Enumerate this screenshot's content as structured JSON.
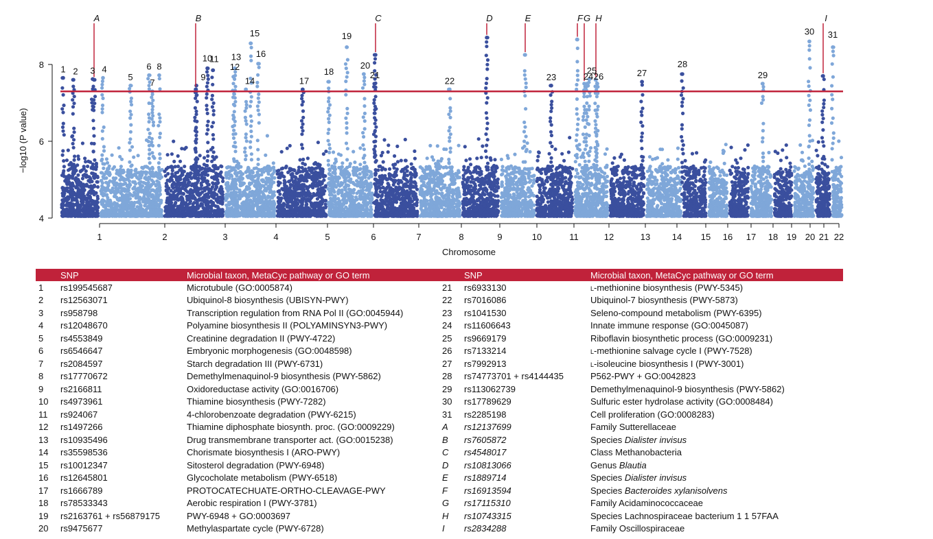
{
  "chart_data": {
    "type": "scatter",
    "xlabel": "Chromosome",
    "ylabel": "−log10 (P value)",
    "ylim": [
      4,
      8.9
    ],
    "yticks": [
      4,
      6,
      8
    ],
    "threshold": 7.3,
    "chromosomes": [
      "1",
      "2",
      "3",
      "4",
      "5",
      "6",
      "7",
      "8",
      "9",
      "10",
      "11",
      "12",
      "13",
      "14",
      "15",
      "16",
      "17",
      "18",
      "19",
      "20",
      "21",
      "22"
    ],
    "peaks": [
      {
        "label": "1",
        "kind": "number",
        "y": 7.65
      },
      {
        "label": "2",
        "kind": "number",
        "y": 7.6
      },
      {
        "label": "3",
        "kind": "number",
        "y": 7.62
      },
      {
        "label": "4",
        "kind": "number",
        "y": 7.65
      },
      {
        "label": "5",
        "kind": "number",
        "y": 7.45
      },
      {
        "label": "6",
        "kind": "number",
        "y": 7.72
      },
      {
        "label": "7",
        "kind": "number",
        "y": 7.3
      },
      {
        "label": "8",
        "kind": "number",
        "y": 7.72
      },
      {
        "label": "9",
        "kind": "number",
        "y": 7.45
      },
      {
        "label": "10",
        "kind": "number",
        "y": 7.9
      },
      {
        "label": "11",
        "kind": "number",
        "y": 7.85
      },
      {
        "label": "12",
        "kind": "number",
        "y": 7.68
      },
      {
        "label": "13",
        "kind": "number",
        "y": 7.9
      },
      {
        "label": "14",
        "kind": "number",
        "y": 7.35
      },
      {
        "label": "15",
        "kind": "number",
        "y": 8.55
      },
      {
        "label": "16",
        "kind": "number",
        "y": 8.02
      },
      {
        "label": "17",
        "kind": "number",
        "y": 7.35
      },
      {
        "label": "18",
        "kind": "number",
        "y": 7.55
      },
      {
        "label": "19",
        "kind": "number",
        "y": 8.45
      },
      {
        "label": "20",
        "kind": "number",
        "y": 7.75
      },
      {
        "label": "21",
        "kind": "number",
        "y": 7.5
      },
      {
        "label": "22",
        "kind": "number",
        "y": 7.35
      },
      {
        "label": "23",
        "kind": "number",
        "y": 7.45
      },
      {
        "label": "24",
        "kind": "number",
        "y": 7.5
      },
      {
        "label": "25",
        "kind": "number",
        "y": 7.62
      },
      {
        "label": "26",
        "kind": "number",
        "y": 7.5
      },
      {
        "label": "27",
        "kind": "number",
        "y": 7.55
      },
      {
        "label": "28",
        "kind": "number",
        "y": 7.75
      },
      {
        "label": "29",
        "kind": "number",
        "y": 7.5
      },
      {
        "label": "30",
        "kind": "number",
        "y": 8.6
      },
      {
        "label": "31",
        "kind": "number",
        "y": 8.45
      },
      {
        "label": "A",
        "kind": "letter",
        "y": 7.6
      },
      {
        "label": "B",
        "kind": "letter",
        "y": 7.35
      },
      {
        "label": "C",
        "kind": "letter",
        "y": 8.25
      },
      {
        "label": "D",
        "kind": "letter",
        "y": 8.7
      },
      {
        "label": "E",
        "kind": "letter",
        "y": 8.25
      },
      {
        "label": "F",
        "kind": "letter",
        "y": 8.65
      },
      {
        "label": "G",
        "kind": "letter",
        "y": 7.5
      },
      {
        "label": "H",
        "kind": "letter",
        "y": 7.6
      },
      {
        "label": "I",
        "kind": "letter",
        "y": 7.7
      }
    ]
  },
  "table": {
    "headers": {
      "snp": "SNP",
      "term": "Microbial taxon, MetaCyc pathway or GO term"
    },
    "rows": [
      {
        "idx": "1",
        "snp": "rs199545687",
        "term": "Microtubule (GO:0005874)"
      },
      {
        "idx": "2",
        "snp": "rs12563071",
        "term": "Ubiquinol-8 biosynthesis (UBISYN-PWY)"
      },
      {
        "idx": "3",
        "snp": "rs958798",
        "term": "Transcription regulation from RNA Pol II (GO:0045944)"
      },
      {
        "idx": "4",
        "snp": "rs12048670",
        "term": "Polyamine biosynthesis II (POLYAMINSYN3-PWY)"
      },
      {
        "idx": "5",
        "snp": "rs4553849",
        "term": "Creatinine degradation II (PWY-4722)"
      },
      {
        "idx": "6",
        "snp": "rs6546647",
        "term": "Embryonic morphogenesis (GO:0048598)"
      },
      {
        "idx": "7",
        "snp": "rs2084597",
        "term": "Starch degradation III (PWY-6731)"
      },
      {
        "idx": "8",
        "snp": "rs17770672",
        "term": "Demethylmenaquinol-9 biosynthesis (PWY-5862)"
      },
      {
        "idx": "9",
        "snp": "rs2166811",
        "term": "Oxidoreductase activity (GO:0016706)"
      },
      {
        "idx": "10",
        "snp": "rs4973961",
        "term": "Thiamine biosynthesis (PWY-7282)"
      },
      {
        "idx": "11",
        "snp": "rs924067",
        "term": "4-chlorobenzoate degradation (PWY-6215)"
      },
      {
        "idx": "12",
        "snp": "rs1497266",
        "term": "Thiamine diphosphate biosynth. proc. (GO:0009229)"
      },
      {
        "idx": "13",
        "snp": "rs10935496",
        "term": "Drug transmembrane transporter act. (GO:0015238)"
      },
      {
        "idx": "14",
        "snp": "rs35598536",
        "term": "Chorismate biosynthesis I (ARO-PWY)"
      },
      {
        "idx": "15",
        "snp": "rs10012347",
        "term": "Sitosterol degradation (PWY-6948)"
      },
      {
        "idx": "16",
        "snp": "rs12645801",
        "term": "Glycocholate metabolism (PWY-6518)"
      },
      {
        "idx": "17",
        "snp": "rs1666789",
        "term": "PROTOCATECHUATE-ORTHO-CLEAVAGE-PWY"
      },
      {
        "idx": "18",
        "snp": "rs78533343",
        "term": "Aerobic respiration I (PWY-3781)"
      },
      {
        "idx": "19",
        "snp": "rs2163761 + rs56879175",
        "term": "PWY-6948 + GO:0003697"
      },
      {
        "idx": "20",
        "snp": "rs9475677",
        "term": "Methylaspartate cycle (PWY-6728)"
      },
      {
        "idx": "21",
        "snp": "rs6933130",
        "term": "L-methionine biosynthesis (PWY-5345)"
      },
      {
        "idx": "22",
        "snp": "rs7016086",
        "term": "Ubiquinol-7 biosynthesis (PWY-5873)"
      },
      {
        "idx": "23",
        "snp": "rs1041530",
        "term": "Seleno-compound metabolism (PWY-6395)"
      },
      {
        "idx": "24",
        "snp": "rs11606643",
        "term": "Innate immune response (GO:0045087)"
      },
      {
        "idx": "25",
        "snp": "rs9669179",
        "term": "Riboflavin biosynthetic process (GO:0009231)"
      },
      {
        "idx": "26",
        "snp": "rs7133214",
        "term": "L-methionine salvage cycle I (PWY-7528)"
      },
      {
        "idx": "27",
        "snp": "rs7992913",
        "term": "L-isoleucine biosynthesis I (PWY-3001)"
      },
      {
        "idx": "28",
        "snp": "rs74773701 + rs4144435",
        "term": "P562-PWY + GO:0042823"
      },
      {
        "idx": "29",
        "snp": "rs113062739",
        "term": "Demethylmenaquinol-9 biosynthesis (PWY-5862)"
      },
      {
        "idx": "30",
        "snp": "rs17789629",
        "term": "Sulfuric ester hydrolase activity (GO:0008484)"
      },
      {
        "idx": "31",
        "snp": "rs2285198",
        "term": "Cell proliferation (GO:0008283)"
      },
      {
        "idx": "A",
        "snp": "rs12137699",
        "term": "Family Sutterellaceae"
      },
      {
        "idx": "B",
        "snp": "rs7605872",
        "term": "Species Dialister invisus"
      },
      {
        "idx": "C",
        "snp": "rs4548017",
        "term": "Class Methanobacteria"
      },
      {
        "idx": "D",
        "snp": "rs10813066",
        "term": "Genus Blautia"
      },
      {
        "idx": "E",
        "snp": "rs1889714",
        "term": "Species Dialister invisus"
      },
      {
        "idx": "F",
        "snp": "rs16913594",
        "term": "Species Bacteroides xylanisolvens"
      },
      {
        "idx": "G",
        "snp": "rs17115310",
        "term": "Family Acidaminococcaceae"
      },
      {
        "idx": "H",
        "snp": "rs10743315",
        "term": "Species Lachnospiraceae bacterium 1 1 57FAA"
      },
      {
        "idx": "I",
        "snp": "rs2834288",
        "term": "Family Oscillospiraceae"
      }
    ]
  },
  "colors": {
    "dark": "#3a4f9e",
    "light": "#7fa7d9",
    "accent": "#c0223a"
  }
}
